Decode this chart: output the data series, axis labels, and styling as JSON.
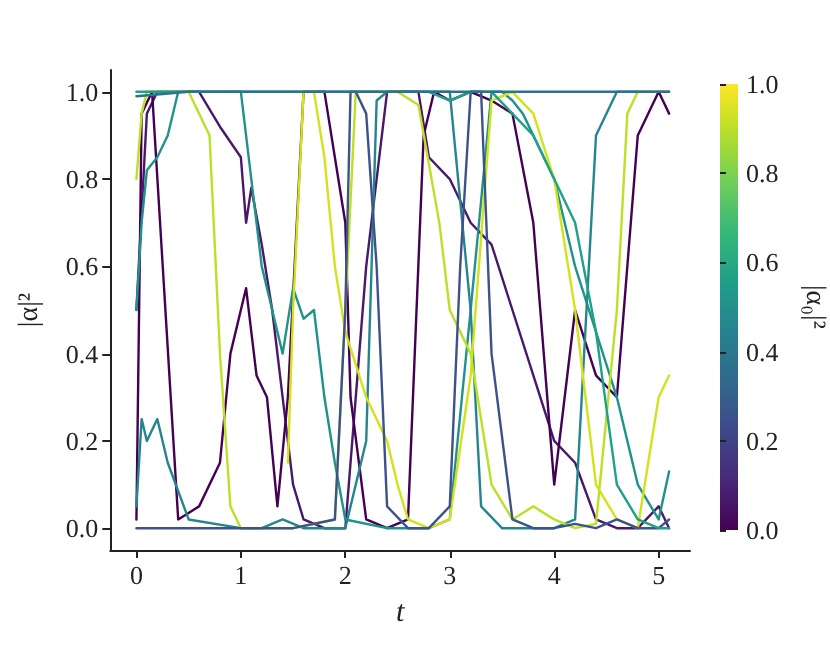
{
  "chart_data": {
    "type": "line",
    "xlabel": "t",
    "ylabel": "|α|²",
    "clabel": "|α₀|²",
    "xlim": [
      -0.25,
      5.3
    ],
    "xticks": [
      0,
      1,
      2,
      3,
      4,
      5
    ],
    "ylim": [
      -0.05,
      1.05
    ],
    "yticks": [
      {
        "value": 0,
        "label": "0.0"
      },
      {
        "value": 0.2,
        "label": "0.2"
      },
      {
        "value": 0.4,
        "label": "0.4"
      },
      {
        "value": 0.6,
        "label": "0.6"
      },
      {
        "value": 0.8,
        "label": "0.8"
      },
      {
        "value": 1,
        "label": "1.0"
      }
    ],
    "clim": [
      0,
      1
    ],
    "cticks": [
      {
        "value": 0,
        "label": "0.0"
      },
      {
        "value": 0.2,
        "label": "0.2"
      },
      {
        "value": 0.4,
        "label": "0.4"
      },
      {
        "value": 0.6,
        "label": "0.6"
      },
      {
        "value": 0.8,
        "label": "0.8"
      },
      {
        "value": 1,
        "label": "1.0"
      }
    ],
    "grid": false,
    "marker": "none",
    "line_style": "solid",
    "series": [
      {
        "color": "#48186a",
        "x": [
          0,
          0.1,
          0.2,
          0.6,
          0.8,
          1.0,
          1.05,
          1.1,
          1.2,
          1.3,
          1.4,
          1.5,
          1.6,
          1.8,
          2.0,
          2.2,
          2.4,
          2.7,
          2.8,
          3.0,
          3.2,
          3.4,
          3.6,
          3.8,
          4.0,
          4.2,
          4.4,
          4.6,
          4.8,
          5.0,
          5.1
        ],
        "values": [
          0.5,
          0.95,
          1,
          1,
          0.92,
          0.85,
          0.7,
          0.78,
          0.65,
          0.5,
          0.3,
          0.1,
          0.02,
          0,
          0,
          0.6,
          1,
          1,
          0.85,
          0.8,
          0.7,
          0.65,
          0.5,
          0.35,
          0.2,
          0.15,
          0.02,
          0,
          0,
          0.05,
          0
        ]
      },
      {
        "color": "#440154",
        "x": [
          0,
          0.05,
          0.15,
          0.4,
          0.6,
          0.8,
          0.9,
          1.0,
          1.05,
          1.15,
          1.25,
          1.35,
          1.45,
          1.6,
          1.8,
          2.0,
          2.05,
          2.2,
          2.4,
          2.6,
          2.75,
          2.85,
          3.0,
          3.2,
          3.4,
          3.6,
          3.8,
          3.9,
          4.0,
          4.2,
          4.4,
          4.6,
          4.8,
          5.0,
          5.1
        ],
        "values": [
          0.02,
          0.95,
          1,
          0.02,
          0.05,
          0.15,
          0.4,
          0.5,
          0.55,
          0.35,
          0.3,
          0.05,
          0.3,
          1,
          1,
          0.7,
          0.3,
          0.02,
          0,
          0.02,
          0.9,
          1,
          0.98,
          1,
          0.98,
          0.95,
          0.7,
          0.4,
          0.1,
          0.5,
          0.35,
          0.3,
          0.9,
          1,
          0.95
        ]
      },
      {
        "color": "#21918c",
        "x": [
          0,
          0.05,
          0.1,
          0.2,
          0.3,
          0.4,
          0.6,
          1.0,
          1.2,
          1.3,
          1.4,
          1.5,
          1.6,
          1.7,
          1.8,
          1.9,
          2.0,
          2.4,
          2.6,
          2.8,
          3.0,
          3.2,
          3.4,
          3.5,
          3.6,
          3.7,
          3.8,
          4.0,
          4.2,
          4.4,
          4.6,
          4.8,
          5.0,
          5.1
        ],
        "values": [
          0.5,
          0.7,
          0.82,
          0.85,
          0.9,
          1,
          1,
          1,
          0.6,
          0.5,
          0.4,
          0.55,
          0.48,
          0.5,
          0.3,
          0.15,
          0.02,
          0,
          0,
          0,
          0.02,
          0.5,
          1,
          1,
          0.98,
          0.95,
          0.9,
          0.8,
          0.6,
          0.45,
          0.3,
          0.1,
          0.02,
          0.13
        ]
      },
      {
        "color": "#25858e",
        "x": [
          0,
          0.05,
          0.1,
          0.2,
          0.3,
          0.5,
          1.0,
          1.2,
          1.4,
          1.6,
          2.0,
          2.2,
          2.3,
          2.4,
          2.6,
          3.0,
          3.2,
          3.3,
          3.5,
          4.0,
          4.2,
          4.4,
          4.6,
          4.8,
          5.1
        ],
        "values": [
          0.05,
          0.25,
          0.2,
          0.25,
          0.15,
          0.02,
          0,
          0,
          0.02,
          0,
          0,
          0.2,
          0.98,
          1,
          1,
          1,
          0.5,
          0.05,
          0,
          0,
          0.02,
          0.9,
          1,
          1,
          1
        ]
      },
      {
        "color": "#bddf26",
        "x": [
          0,
          0.05,
          0.1,
          0.5,
          0.7,
          0.8,
          0.9,
          1.0,
          1.5,
          1.9,
          2.0,
          2.1,
          2.3,
          2.5,
          2.7,
          2.9,
          3.0,
          3.2,
          3.4,
          3.6,
          3.8,
          4.0,
          4.2,
          4.4,
          4.6,
          4.7,
          4.8,
          5.0,
          5.1
        ],
        "values": [
          0.8,
          0.95,
          1,
          1,
          0.9,
          0.4,
          0.05,
          0,
          0,
          0.02,
          0.5,
          1,
          1,
          1,
          0.97,
          0.7,
          0.5,
          0.4,
          0.1,
          0.02,
          0.05,
          0.02,
          0,
          0.01,
          0.5,
          0.95,
          1,
          1,
          1
        ]
      },
      {
        "color": "#d2e21b",
        "x": [
          1.45,
          1.5,
          1.6,
          1.7,
          1.8,
          1.9,
          2.0,
          2.2,
          2.4,
          2.5,
          2.6,
          2.8,
          3.0,
          3.2,
          3.4,
          3.6,
          3.8,
          4.0,
          4.2,
          4.4,
          4.6,
          4.8,
          5.0,
          5.1
        ],
        "values": [
          0.15,
          0.5,
          1,
          1,
          0.85,
          0.6,
          0.45,
          0.3,
          0.2,
          0.1,
          0.02,
          0,
          0.02,
          0.35,
          0.98,
          1,
          0.95,
          0.8,
          0.5,
          0.1,
          0.02,
          0,
          0.3,
          0.35
        ]
      },
      {
        "color": "#3b528b",
        "x": [
          0,
          0.2,
          0.5,
          1.0,
          1.5,
          1.9,
          2.0,
          2.05,
          2.1,
          2.2,
          2.3,
          2.4,
          2.6,
          2.8,
          3.0,
          3.1,
          3.2,
          3.3,
          3.4,
          3.6,
          3.8,
          4.0,
          4.2,
          4.4,
          4.6,
          4.8,
          5.0,
          5.1
        ],
        "values": [
          0,
          0,
          0,
          0,
          0,
          0.02,
          0.5,
          1,
          1,
          0.95,
          0.6,
          0.05,
          0,
          0,
          0.05,
          0.6,
          1,
          1,
          0.4,
          0.02,
          0,
          0,
          0.01,
          0,
          0.02,
          0,
          0,
          0.02
        ]
      },
      {
        "color": "#1fa187",
        "x": [
          0,
          0.3,
          0.5,
          1.0,
          1.3,
          1.5,
          2.0,
          2.5,
          2.8,
          3.0,
          3.2,
          3.4,
          3.6,
          3.8,
          4.0,
          4.2,
          4.4,
          4.6,
          4.8,
          5.0,
          5.1
        ],
        "values": [
          1,
          1,
          1,
          1,
          1,
          1,
          1,
          1,
          1,
          0.98,
          1,
          1,
          0.95,
          0.9,
          0.8,
          0.7,
          0.45,
          0.1,
          0.02,
          0,
          0
        ]
      },
      {
        "color": "#2c728e",
        "x": [
          0,
          0.5,
          1.0,
          1.5,
          2.0,
          2.5,
          3.0,
          3.5,
          4.0,
          4.5,
          5.0,
          5.1
        ],
        "values": [
          0.99,
          1,
          1,
          1,
          1,
          1,
          1,
          1,
          1,
          1,
          1,
          1
        ]
      }
    ]
  }
}
